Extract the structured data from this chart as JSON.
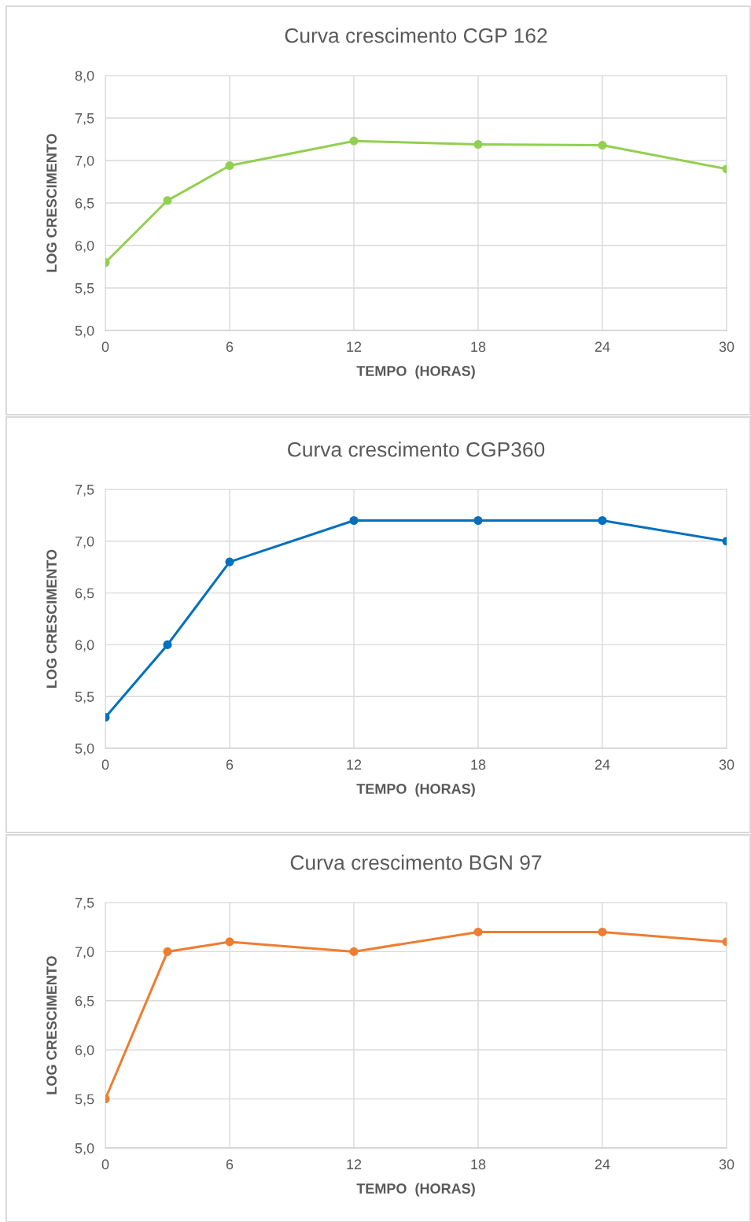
{
  "chart_data": [
    {
      "type": "line",
      "title": "Curva crescimento CGP 162",
      "xlabel": "TEMPO  (HORAS)",
      "ylabel": "LOG CRESCIMENTO",
      "x": [
        0,
        3,
        6,
        12,
        18,
        24,
        30
      ],
      "series": [
        {
          "color": "#92d050",
          "values": [
            5.8,
            6.53,
            6.94,
            7.23,
            7.19,
            7.18,
            6.9
          ]
        }
      ],
      "xlim": [
        0,
        30
      ],
      "xticks": [
        0,
        6,
        12,
        18,
        24,
        30
      ],
      "ylim": [
        5.0,
        8.0
      ],
      "yticks": [
        {
          "value": 5.0,
          "label": "5,0"
        },
        {
          "value": 5.5,
          "label": "5,5"
        },
        {
          "value": 6.0,
          "label": "6,0"
        },
        {
          "value": 6.5,
          "label": "6,5"
        },
        {
          "value": 7.0,
          "label": "7,0"
        },
        {
          "value": 7.5,
          "label": "7,5"
        },
        {
          "value": 8.0,
          "label": "8,0"
        }
      ],
      "grid": true,
      "marker": "circle",
      "line_style": "solid"
    },
    {
      "type": "line",
      "title": "Curva crescimento CGP360",
      "xlabel": "TEMPO  (HORAS)",
      "ylabel": "LOG CRESCIMENTO",
      "x": [
        0,
        3,
        6,
        12,
        18,
        24,
        30
      ],
      "series": [
        {
          "color": "#0070c0",
          "values": [
            5.3,
            6.0,
            6.8,
            7.2,
            7.2,
            7.2,
            7.0
          ]
        }
      ],
      "xlim": [
        0,
        30
      ],
      "xticks": [
        0,
        6,
        12,
        18,
        24,
        30
      ],
      "ylim": [
        5.0,
        7.5
      ],
      "yticks": [
        {
          "value": 5.0,
          "label": "5,0"
        },
        {
          "value": 5.5,
          "label": "5,5"
        },
        {
          "value": 6.0,
          "label": "6,0"
        },
        {
          "value": 6.5,
          "label": "6,5"
        },
        {
          "value": 7.0,
          "label": "7,0"
        },
        {
          "value": 7.5,
          "label": "7,5"
        }
      ],
      "grid": true,
      "marker": "circle",
      "line_style": "solid"
    },
    {
      "type": "line",
      "title": "Curva crescimento BGN 97",
      "xlabel": "TEMPO  (HORAS)",
      "ylabel": "LOG CRESCIMENTO",
      "x": [
        0,
        3,
        6,
        12,
        18,
        24,
        30
      ],
      "series": [
        {
          "color": "#ed7d31",
          "values": [
            5.5,
            7.0,
            7.1,
            7.0,
            7.2,
            7.2,
            7.1
          ]
        }
      ],
      "xlim": [
        0,
        30
      ],
      "xticks": [
        0,
        6,
        12,
        18,
        24,
        30
      ],
      "ylim": [
        5.0,
        7.5
      ],
      "yticks": [
        {
          "value": 5.0,
          "label": "5,0"
        },
        {
          "value": 5.5,
          "label": "5,5"
        },
        {
          "value": 6.0,
          "label": "6,0"
        },
        {
          "value": 6.5,
          "label": "6,5"
        },
        {
          "value": 7.0,
          "label": "7,0"
        },
        {
          "value": 7.5,
          "label": "7,5"
        }
      ],
      "grid": true,
      "marker": "circle",
      "line_style": "solid"
    }
  ]
}
